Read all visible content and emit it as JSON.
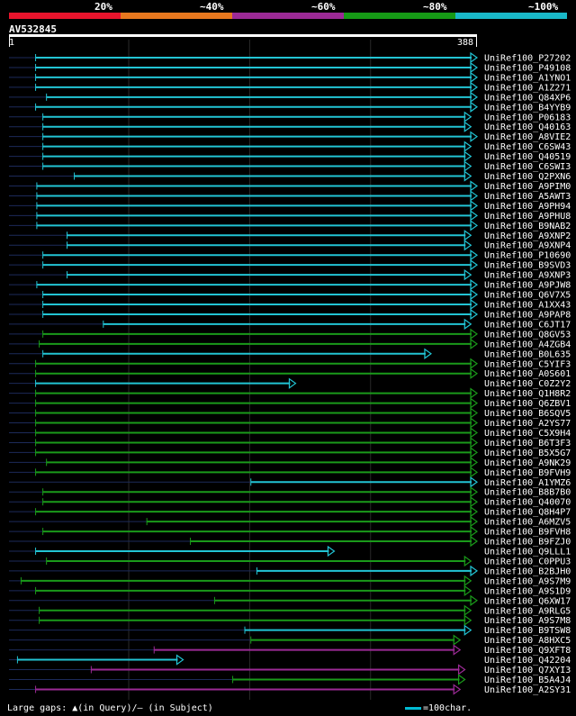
{
  "legend": [
    {
      "label": "20%",
      "color": "#e8142c"
    },
    {
      "label": "~40%",
      "color": "#e8781e"
    },
    {
      "label": "~60%",
      "color": "#9c2a96"
    },
    {
      "label": "~80%",
      "color": "#169a16"
    },
    {
      "label": "~100%",
      "color": "#19b8c8"
    }
  ],
  "query": {
    "name": "AV532845",
    "start": "1",
    "end": "388",
    "length": 388
  },
  "footer": {
    "gaps_text": "Large gaps: ▲(in Query)/— (in Subject)",
    "scale_text": "=100char."
  },
  "chart_data": {
    "type": "alignment-overview",
    "query_length": 388,
    "hits": [
      {
        "id": "UniRef100_P27202",
        "start": 23,
        "end": 388,
        "color": "cyan"
      },
      {
        "id": "UniRef100_P49108",
        "start": 23,
        "end": 388,
        "color": "cyan"
      },
      {
        "id": "UniRef100_A1YNO1",
        "start": 23,
        "end": 388,
        "color": "cyan"
      },
      {
        "id": "UniRef100_A1Z271",
        "start": 23,
        "end": 388,
        "color": "cyan"
      },
      {
        "id": "UniRef100_Q84XP6",
        "start": 32,
        "end": 388,
        "color": "cyan"
      },
      {
        "id": "UniRef100_B4YYB9",
        "start": 23,
        "end": 388,
        "color": "cyan"
      },
      {
        "id": "UniRef100_P06183",
        "start": 29,
        "end": 383,
        "color": "cyan"
      },
      {
        "id": "UniRef100_Q40163",
        "start": 29,
        "end": 383,
        "color": "cyan"
      },
      {
        "id": "UniRef100_A8VIE2",
        "start": 29,
        "end": 388,
        "color": "cyan"
      },
      {
        "id": "UniRef100_C6SW43",
        "start": 29,
        "end": 383,
        "color": "cyan"
      },
      {
        "id": "UniRef100_Q40519",
        "start": 29,
        "end": 383,
        "color": "cyan"
      },
      {
        "id": "UniRef100_C6SWI3",
        "start": 29,
        "end": 383,
        "color": "cyan"
      },
      {
        "id": "UniRef100_Q2PXN6",
        "start": 55,
        "end": 383,
        "color": "cyan"
      },
      {
        "id": "UniRef100_A9PIM0",
        "start": 24,
        "end": 388,
        "color": "cyan"
      },
      {
        "id": "UniRef100_A5AWT3",
        "start": 24,
        "end": 388,
        "color": "cyan"
      },
      {
        "id": "UniRef100_A9PH94",
        "start": 24,
        "end": 388,
        "color": "cyan"
      },
      {
        "id": "UniRef100_A9PHU8",
        "start": 24,
        "end": 388,
        "color": "cyan"
      },
      {
        "id": "UniRef100_B9NAB2",
        "start": 24,
        "end": 388,
        "color": "cyan"
      },
      {
        "id": "UniRef100_A9XNP2",
        "start": 49,
        "end": 383,
        "color": "cyan"
      },
      {
        "id": "UniRef100_A9XNP4",
        "start": 49,
        "end": 383,
        "color": "cyan"
      },
      {
        "id": "UniRef100_P10690",
        "start": 29,
        "end": 388,
        "color": "cyan"
      },
      {
        "id": "UniRef100_B9SVD3",
        "start": 29,
        "end": 388,
        "color": "cyan"
      },
      {
        "id": "UniRef100_A9XNP3",
        "start": 49,
        "end": 383,
        "color": "cyan"
      },
      {
        "id": "UniRef100_A9PJW8",
        "start": 24,
        "end": 388,
        "color": "cyan"
      },
      {
        "id": "UniRef100_Q6V7X5",
        "start": 29,
        "end": 388,
        "color": "cyan"
      },
      {
        "id": "UniRef100_A1XX43",
        "start": 29,
        "end": 388,
        "color": "cyan"
      },
      {
        "id": "UniRef100_A9PAP8",
        "start": 29,
        "end": 388,
        "color": "cyan"
      },
      {
        "id": "UniRef100_C6JT17",
        "start": 79,
        "end": 383,
        "color": "cyan"
      },
      {
        "id": "UniRef100_Q8GV53",
        "start": 29,
        "end": 388,
        "color": "green"
      },
      {
        "id": "UniRef100_A4ZGB4",
        "start": 26,
        "end": 388,
        "color": "green"
      },
      {
        "id": "UniRef100_B0L635",
        "start": 29,
        "end": 350,
        "color": "cyan"
      },
      {
        "id": "UniRef100_C5YIF3",
        "start": 23,
        "end": 388,
        "color": "green"
      },
      {
        "id": "UniRef100_A0S601",
        "start": 23,
        "end": 388,
        "color": "green"
      },
      {
        "id": "UniRef100_C0Z2Y2",
        "start": 23,
        "end": 238,
        "color": "cyan"
      },
      {
        "id": "UniRef100_Q1H8R2",
        "start": 23,
        "end": 388,
        "color": "green"
      },
      {
        "id": "UniRef100_Q6ZBV1",
        "start": 23,
        "end": 388,
        "color": "green"
      },
      {
        "id": "UniRef100_B6SQV5",
        "start": 23,
        "end": 388,
        "color": "green"
      },
      {
        "id": "UniRef100_A2YS77",
        "start": 23,
        "end": 388,
        "color": "green"
      },
      {
        "id": "UniRef100_C5X9H4",
        "start": 23,
        "end": 388,
        "color": "green"
      },
      {
        "id": "UniRef100_B6T3F3",
        "start": 23,
        "end": 388,
        "color": "green"
      },
      {
        "id": "UniRef100_B5X5G7",
        "start": 23,
        "end": 388,
        "color": "green"
      },
      {
        "id": "UniRef100_A9NK29",
        "start": 32,
        "end": 388,
        "color": "green"
      },
      {
        "id": "UniRef100_B9FVH9",
        "start": 23,
        "end": 388,
        "color": "green"
      },
      {
        "id": "UniRef100_A1YMZ6",
        "start": 201,
        "end": 388,
        "color": "cyan"
      },
      {
        "id": "UniRef100_B8B7B0",
        "start": 29,
        "end": 388,
        "color": "green"
      },
      {
        "id": "UniRef100_Q40070",
        "start": 29,
        "end": 388,
        "color": "green"
      },
      {
        "id": "UniRef100_Q8H4P7",
        "start": 23,
        "end": 388,
        "color": "green"
      },
      {
        "id": "UniRef100_A6MZV5",
        "start": 115,
        "end": 388,
        "color": "green"
      },
      {
        "id": "UniRef100_B9FVH8",
        "start": 29,
        "end": 388,
        "color": "green"
      },
      {
        "id": "UniRef100_B9FZJ0",
        "start": 151,
        "end": 388,
        "color": "green"
      },
      {
        "id": "UniRef100_Q9LLL1",
        "start": 23,
        "end": 270,
        "color": "cyan"
      },
      {
        "id": "UniRef100_C0PPU3",
        "start": 32,
        "end": 383,
        "color": "green"
      },
      {
        "id": "UniRef100_B2BJH0",
        "start": 206,
        "end": 388,
        "color": "cyan"
      },
      {
        "id": "UniRef100_A9S7M9",
        "start": 11,
        "end": 383,
        "color": "green"
      },
      {
        "id": "UniRef100_A9S1D9",
        "start": 23,
        "end": 383,
        "color": "green"
      },
      {
        "id": "UniRef100_Q6XW17",
        "start": 171,
        "end": 388,
        "color": "green"
      },
      {
        "id": "UniRef100_A9RLG5",
        "start": 26,
        "end": 383,
        "color": "green"
      },
      {
        "id": "UniRef100_A9S7M8",
        "start": 26,
        "end": 383,
        "color": "green"
      },
      {
        "id": "UniRef100_B9TSW8",
        "start": 196,
        "end": 383,
        "color": "cyan"
      },
      {
        "id": "UniRef100_A8HXC5",
        "start": 201,
        "end": 374,
        "color": "green"
      },
      {
        "id": "UniRef100_Q9XFT8",
        "start": 121,
        "end": 374,
        "color": "purple"
      },
      {
        "id": "UniRef100_Q42204",
        "start": 8,
        "end": 145,
        "color": "cyan"
      },
      {
        "id": "UniRef100_Q7XYI3",
        "start": 69,
        "end": 378,
        "color": "purple"
      },
      {
        "id": "UniRef100_B5A4J4",
        "start": 186,
        "end": 378,
        "color": "green"
      },
      {
        "id": "UniRef100_A2SY31",
        "start": 23,
        "end": 374,
        "color": "purple"
      }
    ]
  }
}
